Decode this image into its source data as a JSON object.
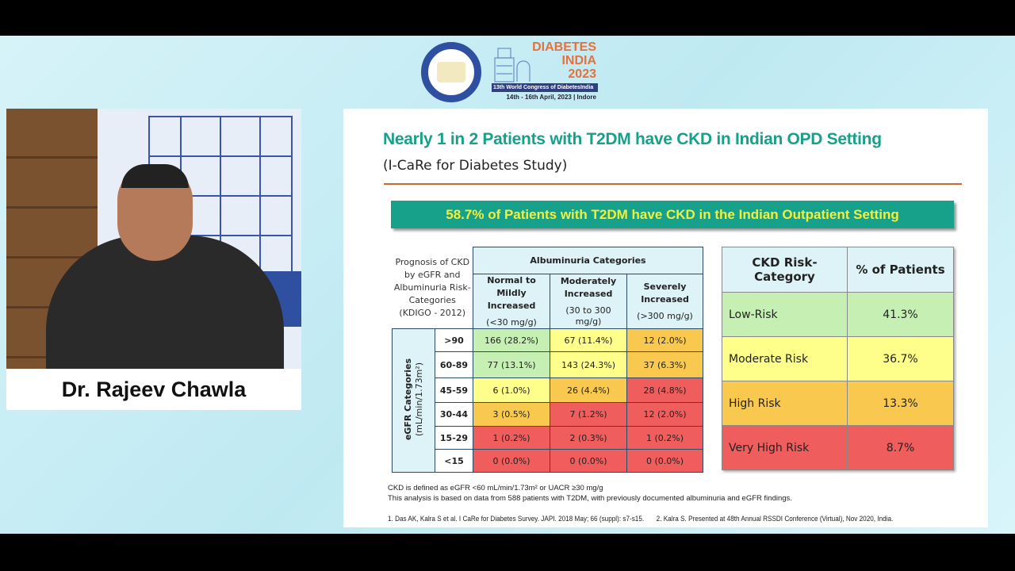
{
  "speaker": {
    "name": "Dr. Rajeev Chawla"
  },
  "event": {
    "logo_left": "Diabetes India - Available Accessible and Affordable - Together We Can Achieve",
    "name_line1": "DIABETES",
    "name_line2": "INDIA",
    "year": "2023",
    "congress": "13th World Congress of DiabetesIndia",
    "dates": "14th - 16th April, 2023 | Indore"
  },
  "slide": {
    "title": "Nearly 1 in 2 Patients with T2DM have CKD in Indian OPD Setting",
    "subtitle": "(I-CaRe for Diabetes Study)",
    "banner": "58.7% of Patients with T2DM  have CKD in the Indian Outpatient Setting",
    "left_table": {
      "corner": "Prognosis of CKD by eGFR and Albuminuria Risk-Categories (KDIGO - 2012)",
      "group_header": "Albuminuria Categories",
      "columns": [
        {
          "name": "Normal to Mildly Increased",
          "range": "(<30 mg/g)"
        },
        {
          "name": "Moderately Increased",
          "range": "(30 to 300 mg/g)"
        },
        {
          "name": "Severely Increased",
          "range": "(>300 mg/g)"
        }
      ],
      "row_group_label": "eGFR Categories",
      "row_group_unit": "(mL/min/1.73m²)",
      "rows": [
        {
          "label": ">90",
          "cells": [
            "166 (28.2%)",
            "67 (11.4%)",
            "12 (2.0%)"
          ],
          "risk": [
            "g",
            "y",
            "o"
          ]
        },
        {
          "label": "60-89",
          "cells": [
            "77 (13.1%)",
            "143 (24.3%)",
            "37 (6.3%)"
          ],
          "risk": [
            "g",
            "y",
            "o"
          ]
        },
        {
          "label": "45-59",
          "cells": [
            "6 (1.0%)",
            "26 (4.4%)",
            "28 (4.8%)"
          ],
          "risk": [
            "y",
            "o",
            "r"
          ]
        },
        {
          "label": "30-44",
          "cells": [
            "3 (0.5%)",
            "7 (1.2%)",
            "12 (2.0%)"
          ],
          "risk": [
            "o",
            "r",
            "r"
          ]
        },
        {
          "label": "15-29",
          "cells": [
            "1 (0.2%)",
            "2 (0.3%)",
            "1 (0.2%)"
          ],
          "risk": [
            "r",
            "r",
            "r"
          ]
        },
        {
          "label": "<15",
          "cells": [
            "0 (0.0%)",
            "0 (0.0%)",
            "0 (0.0%)"
          ],
          "risk": [
            "r",
            "r",
            "r"
          ]
        }
      ]
    },
    "right_table": {
      "headers": [
        "CKD Risk-Category",
        "% of Patients"
      ],
      "rows": [
        {
          "category": "Low-Risk",
          "percent": "41.3%",
          "color": "#c6efb3"
        },
        {
          "category": "Moderate Risk",
          "percent": "36.7%",
          "color": "#fefe8a"
        },
        {
          "category": "High Risk",
          "percent": "13.3%",
          "color": "#f8c94e"
        },
        {
          "category": "Very High Risk",
          "percent": "8.7%",
          "color": "#ef5d5d"
        }
      ]
    },
    "notes": [
      "CKD is defined as eGFR <60 mL/min/1.73m² or UACR ≥30 mg/g",
      "This analysis is based on data from 588 patients with T2DM, with previously documented albuminuria and eGFR findings."
    ],
    "references": [
      "1. Das AK, Kalra S et al. I CaRe for Diabetes Survey. JAPI. 2018 May; 66 (suppl): s7-s15.",
      "2. Kalra S. Presented at 48th Annual RSSDI Conference (Virtual), Nov 2020, India."
    ]
  },
  "colors": {
    "title": "#17a08a",
    "banner_bg": "#17a08a",
    "banner_text": "#f4f03a",
    "green": "#c6efb3",
    "yellow": "#fefe8a",
    "orange": "#f8c94e",
    "red": "#ef5d5d"
  }
}
